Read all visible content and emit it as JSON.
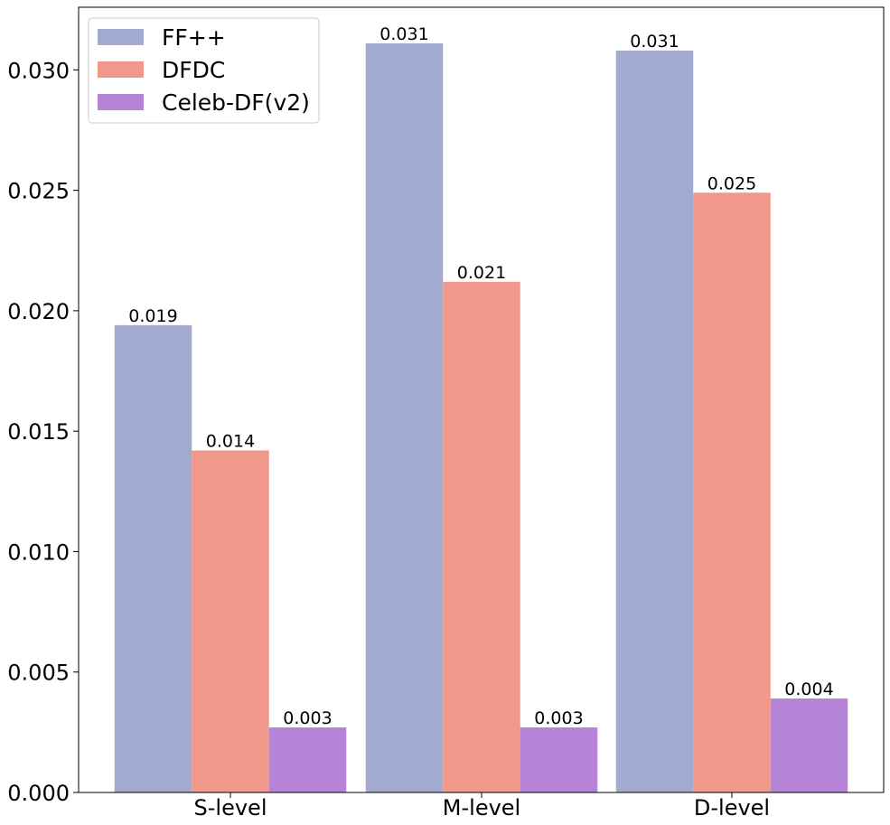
{
  "chart_data": {
    "type": "bar",
    "title": "",
    "xlabel": "",
    "ylabel": "",
    "categories": [
      "S-level",
      "M-level",
      "D-level"
    ],
    "series": [
      {
        "name": "FF++",
        "color": "#a2aacf",
        "values": [
          0.0194,
          0.0311,
          0.0308
        ],
        "labels": [
          "0.019",
          "0.031",
          "0.031"
        ]
      },
      {
        "name": "DFDC",
        "color": "#f0998b",
        "values": [
          0.0142,
          0.0212,
          0.0249
        ],
        "labels": [
          "0.014",
          "0.021",
          "0.025"
        ]
      },
      {
        "name": "Celeb-DF(v2)",
        "color": "#b584d6",
        "values": [
          0.0027,
          0.0027,
          0.0039
        ],
        "labels": [
          "0.003",
          "0.003",
          "0.004"
        ]
      }
    ],
    "ylim": [
      0,
      0.0326
    ],
    "yticks": [
      0.0,
      0.005,
      0.01,
      0.015,
      0.02,
      0.025,
      0.03
    ],
    "ytick_labels": [
      "0.000",
      "0.005",
      "0.010",
      "0.015",
      "0.020",
      "0.025",
      "0.030"
    ],
    "legend_position": "top-left",
    "grid": false
  }
}
